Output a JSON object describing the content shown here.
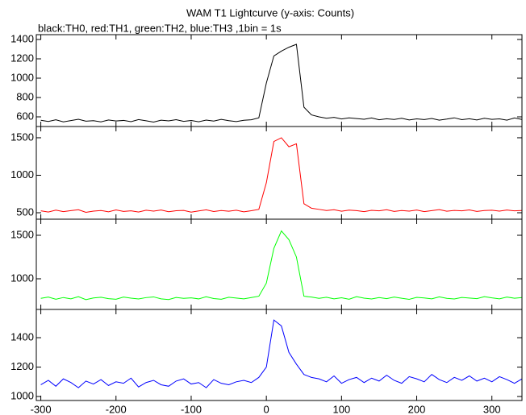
{
  "chart_data": [
    {
      "type": "line",
      "title": "WAM T1 Lightcurve (y-axis: Counts)",
      "subtitle": "black:TH0, red:TH1, green:TH2, blue:TH3 ,1bin = 1s",
      "x": [
        -300,
        -290,
        -280,
        -270,
        -260,
        -250,
        -240,
        -230,
        -220,
        -210,
        -200,
        -190,
        -180,
        -170,
        -160,
        -150,
        -140,
        -130,
        -120,
        -110,
        -100,
        -90,
        -80,
        -70,
        -60,
        -50,
        -40,
        -30,
        -20,
        -10,
        0,
        10,
        20,
        30,
        40,
        50,
        60,
        70,
        80,
        90,
        100,
        110,
        120,
        130,
        140,
        150,
        160,
        170,
        180,
        190,
        200,
        210,
        220,
        230,
        240,
        250,
        260,
        270,
        280,
        290,
        300,
        310,
        320,
        330,
        340
      ],
      "series": [
        {
          "color": "#000000",
          "values": [
            565,
            552,
            570,
            548,
            561,
            575,
            555,
            560,
            548,
            568,
            557,
            563,
            550,
            572,
            559,
            546,
            566,
            558,
            571,
            553,
            562,
            549,
            567,
            556,
            574,
            560,
            551,
            565,
            570,
            590,
            950,
            1230,
            1280,
            1320,
            1350,
            700,
            620,
            600,
            585,
            595,
            578,
            590,
            582,
            575,
            588,
            570,
            580,
            573,
            585,
            568,
            579,
            572,
            583,
            566,
            577,
            590,
            571,
            580,
            568,
            585,
            574,
            579,
            566,
            588,
            573
          ]
        }
      ],
      "xlim": [
        -306,
        340
      ],
      "xticks": [
        -300,
        -200,
        -100,
        0,
        100,
        200,
        300
      ],
      "ylim": [
        500,
        1450
      ],
      "yticks": [
        600,
        800,
        1000,
        1200,
        1400
      ]
    },
    {
      "type": "line",
      "x": [
        -300,
        -290,
        -280,
        -270,
        -260,
        -250,
        -240,
        -230,
        -220,
        -210,
        -200,
        -190,
        -180,
        -170,
        -160,
        -150,
        -140,
        -130,
        -120,
        -110,
        -100,
        -90,
        -80,
        -70,
        -60,
        -50,
        -40,
        -30,
        -20,
        -10,
        0,
        10,
        20,
        30,
        40,
        50,
        60,
        70,
        80,
        90,
        100,
        110,
        120,
        130,
        140,
        150,
        160,
        170,
        180,
        190,
        200,
        210,
        220,
        230,
        240,
        250,
        260,
        270,
        280,
        290,
        300,
        310,
        320,
        330,
        340
      ],
      "series": [
        {
          "color": "#ff0000",
          "values": [
            525,
            510,
            535,
            515,
            528,
            540,
            505,
            522,
            530,
            512,
            538,
            518,
            526,
            509,
            533,
            521,
            536,
            514,
            527,
            531,
            508,
            524,
            539,
            516,
            529,
            520,
            534,
            512,
            527,
            545,
            900,
            1450,
            1500,
            1380,
            1420,
            620,
            560,
            545,
            530,
            540,
            520,
            535,
            528,
            515,
            532,
            525,
            540,
            518,
            530,
            522,
            536,
            515,
            528,
            542,
            520,
            531,
            525,
            538,
            517,
            529,
            534,
            521,
            536,
            525,
            530
          ]
        }
      ],
      "xlim": [
        -306,
        340
      ],
      "xticks": [
        -300,
        -200,
        -100,
        0,
        100,
        200,
        300
      ],
      "ylim": [
        414,
        1650
      ],
      "yticks": [
        500,
        1000,
        1500
      ]
    },
    {
      "type": "line",
      "x": [
        -300,
        -290,
        -280,
        -270,
        -260,
        -250,
        -240,
        -230,
        -220,
        -210,
        -200,
        -190,
        -180,
        -170,
        -160,
        -150,
        -140,
        -130,
        -120,
        -110,
        -100,
        -90,
        -80,
        -70,
        -60,
        -50,
        -40,
        -30,
        -20,
        -10,
        0,
        10,
        20,
        30,
        40,
        50,
        60,
        70,
        80,
        90,
        100,
        110,
        120,
        130,
        140,
        150,
        160,
        170,
        180,
        190,
        200,
        210,
        220,
        230,
        240,
        250,
        260,
        270,
        280,
        290,
        300,
        310,
        320,
        330,
        340
      ],
      "series": [
        {
          "color": "#00ff00",
          "values": [
            775,
            790,
            765,
            785,
            770,
            795,
            760,
            780,
            788,
            772,
            765,
            790,
            778,
            768,
            784,
            792,
            770,
            762,
            786,
            775,
            781,
            769,
            794,
            773,
            765,
            788,
            779,
            770,
            785,
            800,
            950,
            1350,
            1550,
            1450,
            1250,
            800,
            790,
            775,
            788,
            770,
            782,
            765,
            795,
            778,
            768,
            785,
            772,
            790,
            776,
            764,
            787,
            780,
            770,
            793,
            775,
            768,
            786,
            779,
            772,
            795,
            781,
            770,
            790,
            777,
            785
          ]
        }
      ],
      "xlim": [
        -306,
        340
      ],
      "xticks": [
        -300,
        -200,
        -100,
        0,
        100,
        200,
        300
      ],
      "ylim": [
        648,
        1685
      ],
      "yticks": [
        1000,
        1500
      ]
    },
    {
      "type": "line",
      "x": [
        -300,
        -290,
        -280,
        -270,
        -260,
        -250,
        -240,
        -230,
        -220,
        -210,
        -200,
        -190,
        -180,
        -170,
        -160,
        -150,
        -140,
        -130,
        -120,
        -110,
        -100,
        -90,
        -80,
        -70,
        -60,
        -50,
        -40,
        -30,
        -20,
        -10,
        0,
        10,
        20,
        30,
        40,
        50,
        60,
        70,
        80,
        90,
        100,
        110,
        120,
        130,
        140,
        150,
        160,
        170,
        180,
        190,
        200,
        210,
        220,
        230,
        240,
        250,
        260,
        270,
        280,
        290,
        300,
        310,
        320,
        330,
        340
      ],
      "series": [
        {
          "color": "#0000ff",
          "values": [
            1080,
            1110,
            1070,
            1120,
            1095,
            1060,
            1105,
            1085,
            1115,
            1075,
            1100,
            1090,
            1125,
            1065,
            1095,
            1110,
            1080,
            1070,
            1105,
            1120,
            1085,
            1095,
            1060,
            1115,
            1090,
            1080,
            1100,
            1110,
            1095,
            1130,
            1200,
            1520,
            1480,
            1300,
            1220,
            1150,
            1130,
            1120,
            1100,
            1140,
            1090,
            1115,
            1130,
            1095,
            1125,
            1105,
            1145,
            1110,
            1090,
            1135,
            1120,
            1100,
            1150,
            1115,
            1095,
            1130,
            1110,
            1140,
            1105,
            1125,
            1100,
            1135,
            1115,
            1090,
            1120
          ]
        }
      ],
      "xlim": [
        -306,
        340
      ],
      "xticks": [
        -300,
        -200,
        -100,
        0,
        100,
        200,
        300
      ],
      "xtick_labels_shown": true,
      "ylim": [
        973,
        1592
      ],
      "yticks": [
        1000,
        1200,
        1400
      ]
    }
  ]
}
